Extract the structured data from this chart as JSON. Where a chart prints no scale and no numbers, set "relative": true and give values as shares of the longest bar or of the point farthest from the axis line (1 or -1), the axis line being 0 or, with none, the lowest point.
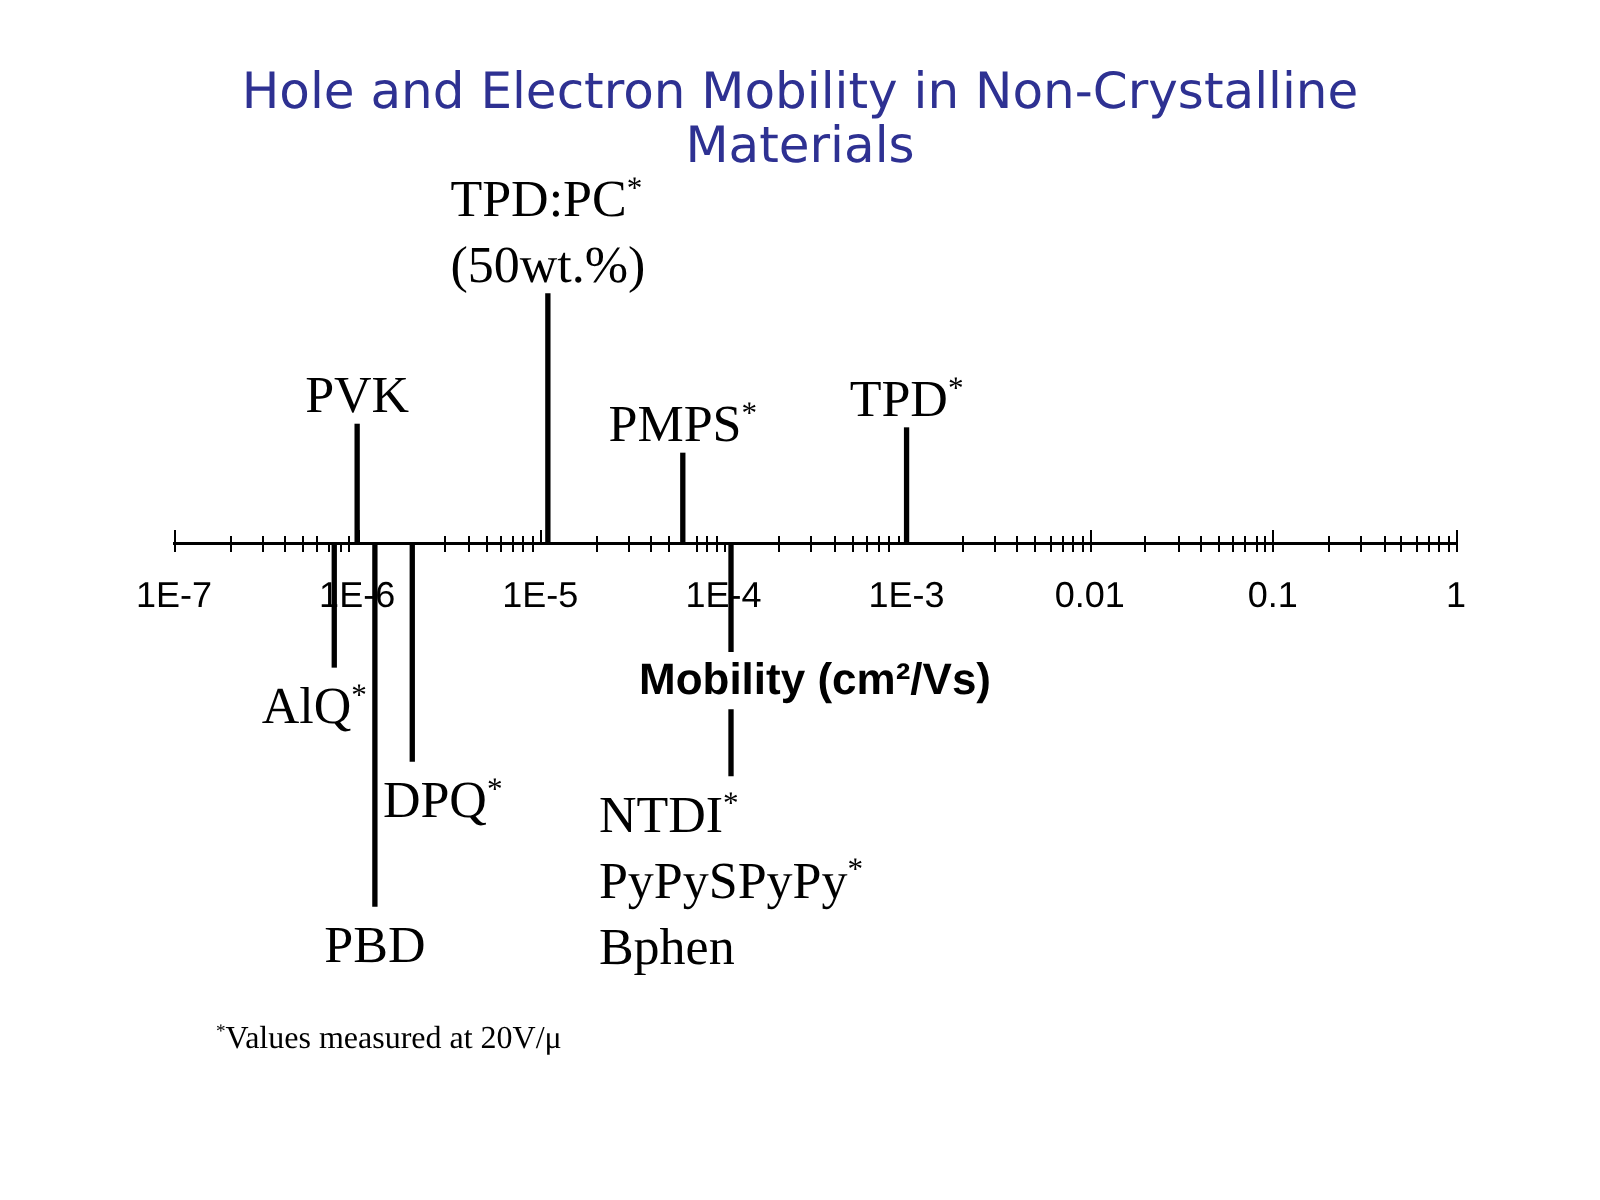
{
  "chart_data": {
    "type": "bar",
    "title": "Hole and Electron Mobility in Non-Crystalline Materials",
    "xlabel": "Mobility (cm²/Vs)",
    "x": [
      7.5e-07,
      1e-06,
      1.25e-06,
      2e-06,
      1.1e-05,
      6e-05,
      0.00011,
      0.001
    ],
    "values": [
      -0.34,
      0.33,
      -1,
      -0.6,
      0.69,
      0.25,
      -0.64,
      0.32
    ],
    "color": "#000000",
    "relative": true,
    "log": "x",
    "xlim": [
      1e-07,
      1
    ],
    "xticks": [
      {
        "value": 1e-07,
        "label": "1E-7"
      },
      {
        "value": 2e-07,
        "label": null
      },
      {
        "value": 3e-07,
        "label": null
      },
      {
        "value": 4e-07,
        "label": null
      },
      {
        "value": 5e-07,
        "label": null
      },
      {
        "value": 6e-07,
        "label": null
      },
      {
        "value": 7e-07,
        "label": null
      },
      {
        "value": 8e-07,
        "label": null
      },
      {
        "value": 9e-07,
        "label": null
      },
      {
        "value": 1e-06,
        "label": "1E-6"
      },
      {
        "value": 2e-06,
        "label": null
      },
      {
        "value": 3e-06,
        "label": null
      },
      {
        "value": 4e-06,
        "label": null
      },
      {
        "value": 5e-06,
        "label": null
      },
      {
        "value": 6e-06,
        "label": null
      },
      {
        "value": 7e-06,
        "label": null
      },
      {
        "value": 8e-06,
        "label": null
      },
      {
        "value": 9e-06,
        "label": null
      },
      {
        "value": 1e-05,
        "label": "1E-5"
      },
      {
        "value": 2e-05,
        "label": null
      },
      {
        "value": 3e-05,
        "label": null
      },
      {
        "value": 4e-05,
        "label": null
      },
      {
        "value": 5e-05,
        "label": null
      },
      {
        "value": 6e-05,
        "label": null
      },
      {
        "value": 7e-05,
        "label": null
      },
      {
        "value": 8e-05,
        "label": null
      },
      {
        "value": 9e-05,
        "label": null
      },
      {
        "value": 0.0001,
        "label": "1E-4"
      },
      {
        "value": 0.0002,
        "label": null
      },
      {
        "value": 0.0003,
        "label": null
      },
      {
        "value": 0.0004,
        "label": null
      },
      {
        "value": 0.0005,
        "label": null
      },
      {
        "value": 0.0006,
        "label": null
      },
      {
        "value": 0.0007,
        "label": null
      },
      {
        "value": 0.0008,
        "label": null
      },
      {
        "value": 0.0009,
        "label": null
      },
      {
        "value": 0.001,
        "label": "1E-3"
      },
      {
        "value": 0.002,
        "label": null
      },
      {
        "value": 0.003,
        "label": null
      },
      {
        "value": 0.004,
        "label": null
      },
      {
        "value": 0.005,
        "label": null
      },
      {
        "value": 0.006,
        "label": null
      },
      {
        "value": 0.007,
        "label": null
      },
      {
        "value": 0.008,
        "label": null
      },
      {
        "value": 0.009,
        "label": null
      },
      {
        "value": 0.01,
        "label": "0.01"
      },
      {
        "value": 0.02,
        "label": null
      },
      {
        "value": 0.03,
        "label": null
      },
      {
        "value": 0.04,
        "label": null
      },
      {
        "value": 0.05,
        "label": null
      },
      {
        "value": 0.06,
        "label": null
      },
      {
        "value": 0.07,
        "label": null
      },
      {
        "value": 0.08,
        "label": null
      },
      {
        "value": 0.09,
        "label": null
      },
      {
        "value": 0.1,
        "label": "0.1"
      },
      {
        "value": 0.2,
        "label": null
      },
      {
        "value": 0.3,
        "label": null
      },
      {
        "value": 0.4,
        "label": null
      },
      {
        "value": 0.5,
        "label": null
      },
      {
        "value": 0.6,
        "label": null
      },
      {
        "value": 0.7,
        "label": null
      },
      {
        "value": 0.8,
        "label": null
      },
      {
        "value": 0.9,
        "label": null
      },
      {
        "value": 1,
        "label": "1"
      }
    ],
    "tick_labels": "x",
    "annotations": [
      {
        "text": "AlQ$^{*}$",
        "x": 7.5e-07,
        "y": -0.34
      },
      {
        "text": "PVK",
        "x": 1e-06,
        "y": 0.33
      },
      {
        "text": "PBD",
        "x": 1.25e-06,
        "y": -1
      },
      {
        "text": "DPQ$^{*}$",
        "x": 2e-06,
        "y": -0.6
      },
      {
        "text": "TPD:PC$^{*}$\n(50wt.%)",
        "x": 1.1e-05,
        "y": 0.69
      },
      {
        "text": "PMPS$^{*}$",
        "x": 6e-05,
        "y": 0.25
      },
      {
        "text": "NTDI$^{*}$",
        "x": 0.00011,
        "y": -0.64
      },
      {
        "text": "PyPySPyPy$^{*}$",
        "x": 0.00011,
        "y": -0.64
      },
      {
        "text": "Bphen",
        "x": 0.00011,
        "y": -0.64
      },
      {
        "text": "TPD$^{*}$",
        "x": 0.001,
        "y": 0.32
      },
      "$^{*}$Values measured at 20V/μ"
    ]
  }
}
